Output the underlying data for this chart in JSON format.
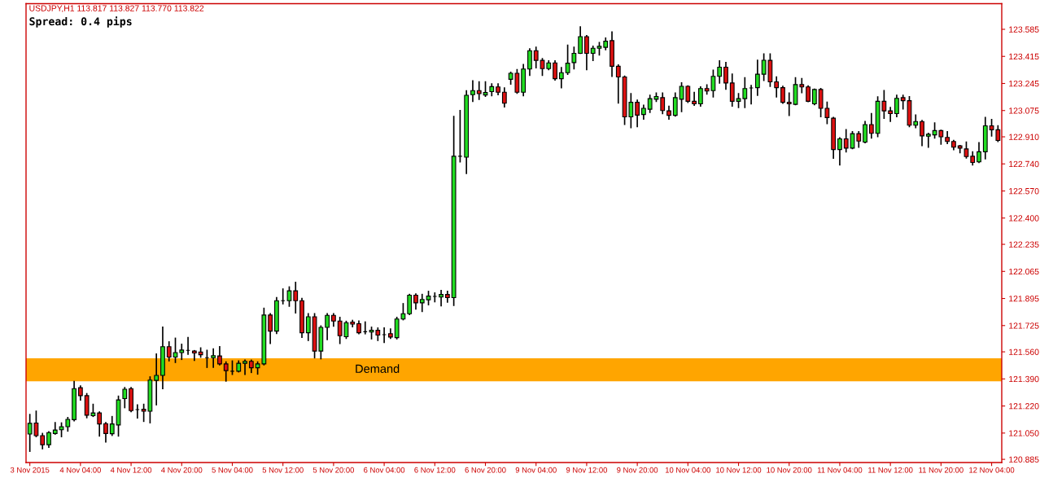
{
  "chart_data": {
    "type": "candlestick",
    "title": "USDJPY,H1 113.817 113.827 113.770 113.822",
    "annotations": [
      "Spread: 0.4 pips"
    ],
    "categories": [
      "3 Nov 2015",
      null,
      null,
      null,
      null,
      null,
      null,
      null,
      "4 Nov 04:00",
      null,
      null,
      null,
      null,
      null,
      null,
      null,
      "4 Nov 12:00",
      null,
      null,
      null,
      null,
      null,
      null,
      null,
      "4 Nov 20:00",
      null,
      null,
      null,
      null,
      null,
      null,
      null,
      "5 Nov 04:00",
      null,
      null,
      null,
      null,
      null,
      null,
      null,
      "5 Nov 12:00",
      null,
      null,
      null,
      null,
      null,
      null,
      null,
      "5 Nov 20:00",
      null,
      null,
      null,
      null,
      null,
      null,
      null,
      "6 Nov 04:00",
      null,
      null,
      null,
      null,
      null,
      null,
      null,
      "6 Nov 12:00",
      null,
      null,
      null,
      null,
      null,
      null,
      null,
      "6 Nov 20:00",
      null,
      null,
      null,
      null,
      null,
      null,
      null,
      "9 Nov 04:00",
      null,
      null,
      null,
      null,
      null,
      null,
      null,
      "9 Nov 12:00",
      null,
      null,
      null,
      null,
      null,
      null,
      null,
      "9 Nov 20:00",
      null,
      null,
      null,
      null,
      null,
      null,
      null,
      "10 Nov 04:00",
      null,
      null,
      null,
      null,
      null,
      null,
      null,
      "10 Nov 12:00",
      null,
      null,
      null,
      null,
      null,
      null,
      null,
      "10 Nov 20:00",
      null,
      null,
      null,
      null,
      null,
      null,
      null,
      "11 Nov 04:00",
      null,
      null,
      null,
      null,
      null,
      null,
      null,
      "11 Nov 12:00",
      null,
      null,
      null,
      null,
      null,
      null,
      null,
      "11 Nov 20:00",
      null,
      null,
      null,
      null,
      null,
      null,
      null,
      "12 Nov 04:00",
      null
    ],
    "ohlc": [
      [
        121.044,
        121.166,
        120.936,
        121.111
      ],
      [
        121.113,
        121.187,
        121.028,
        121.034
      ],
      [
        121.034,
        121.047,
        120.952,
        120.977
      ],
      [
        120.977,
        121.057,
        120.961,
        121.053
      ],
      [
        121.047,
        121.115,
        121.044,
        121.069
      ],
      [
        121.071,
        121.113,
        121.028,
        121.09
      ],
      [
        121.09,
        121.147,
        121.063,
        121.136
      ],
      [
        121.134,
        121.373,
        121.128,
        121.329
      ],
      [
        121.335,
        121.345,
        121.258,
        121.285
      ],
      [
        121.285,
        121.297,
        121.147,
        121.162
      ],
      [
        121.159,
        121.23,
        121.155,
        121.176
      ],
      [
        121.176,
        121.182,
        121.032,
        121.107
      ],
      [
        121.109,
        121.115,
        120.994,
        121.047
      ],
      [
        121.046,
        121.153,
        121.036,
        121.107
      ],
      [
        121.101,
        121.281,
        121.032,
        121.258
      ],
      [
        121.266,
        121.335,
        121.21,
        121.325
      ],
      [
        121.329,
        121.335,
        121.185,
        121.191
      ],
      [
        121.197,
        121.226,
        121.145,
        121.197
      ],
      [
        121.199,
        121.23,
        121.124,
        121.187
      ],
      [
        121.187,
        121.402,
        121.115,
        121.383
      ],
      [
        121.381,
        121.546,
        121.228,
        121.412
      ],
      [
        121.412,
        121.714,
        121.329,
        121.592
      ],
      [
        121.592,
        121.622,
        121.504,
        121.527
      ],
      [
        121.527,
        121.645,
        121.494,
        121.555
      ],
      [
        121.555,
        121.607,
        121.513,
        121.571
      ],
      [
        121.569,
        121.649,
        121.546,
        121.569
      ],
      [
        121.565,
        121.567,
        121.507,
        121.553
      ],
      [
        121.559,
        121.584,
        121.527,
        121.542
      ],
      [
        121.523,
        121.569,
        121.463,
        121.523
      ],
      [
        121.523,
        121.578,
        121.463,
        121.536
      ],
      [
        121.534,
        121.592,
        121.479,
        121.484
      ],
      [
        121.484,
        121.496,
        121.377,
        121.442
      ],
      [
        121.438,
        121.502,
        121.419,
        121.438
      ],
      [
        121.438,
        121.502,
        121.435,
        121.488
      ],
      [
        121.488,
        121.507,
        121.419,
        121.5
      ],
      [
        121.5,
        121.507,
        121.431,
        121.46
      ],
      [
        121.46,
        121.496,
        121.421,
        121.484
      ],
      [
        121.484,
        121.833,
        121.479,
        121.791
      ],
      [
        121.791,
        121.799,
        121.613,
        121.69
      ],
      [
        121.69,
        121.9,
        121.676,
        121.881
      ],
      [
        121.881,
        121.954,
        121.862,
        121.881
      ],
      [
        121.881,
        121.967,
        121.847,
        121.943
      ],
      [
        121.943,
        121.996,
        121.805,
        121.881
      ],
      [
        121.881,
        121.895,
        121.651,
        121.68
      ],
      [
        121.68,
        121.799,
        121.632,
        121.78
      ],
      [
        121.78,
        121.799,
        121.523,
        121.565
      ],
      [
        121.565,
        121.722,
        121.517,
        121.714
      ],
      [
        121.714,
        121.799,
        121.638,
        121.789
      ],
      [
        121.789,
        121.799,
        121.722,
        121.753
      ],
      [
        121.753,
        121.776,
        121.613,
        121.661
      ],
      [
        121.655,
        121.751,
        121.645,
        121.743
      ],
      [
        121.747,
        121.757,
        121.718,
        121.734
      ],
      [
        121.737,
        121.753,
        121.674,
        121.68
      ],
      [
        121.686,
        121.747,
        121.674,
        121.686
      ],
      [
        121.684,
        121.714,
        121.642,
        121.695
      ],
      [
        121.695,
        121.709,
        121.632,
        121.665
      ],
      [
        121.668,
        121.709,
        121.619,
        121.668
      ],
      [
        121.674,
        121.703,
        121.645,
        121.653
      ],
      [
        121.649,
        121.776,
        121.642,
        121.766
      ],
      [
        121.766,
        121.862,
        121.762,
        121.799
      ],
      [
        121.799,
        121.92,
        121.795,
        121.916
      ],
      [
        121.916,
        121.923,
        121.829,
        121.868
      ],
      [
        121.868,
        121.92,
        121.814,
        121.889
      ],
      [
        121.887,
        121.939,
        121.856,
        121.91
      ],
      [
        121.908,
        121.929,
        121.875,
        121.908
      ],
      [
        121.904,
        121.944,
        121.85,
        121.92
      ],
      [
        121.92,
        121.939,
        121.872,
        121.9
      ],
      [
        121.9,
        123.037,
        121.852,
        122.788
      ],
      [
        122.788,
        123.075,
        122.753,
        122.788
      ],
      [
        122.782,
        123.198,
        122.68,
        123.171
      ],
      [
        123.175,
        123.261,
        123.133,
        123.2
      ],
      [
        123.2,
        123.255,
        123.146,
        123.181
      ],
      [
        123.173,
        123.255,
        123.165,
        123.188
      ],
      [
        123.194,
        123.242,
        123.169,
        123.225
      ],
      [
        123.223,
        123.242,
        123.175,
        123.19
      ],
      [
        123.19,
        123.217,
        123.098,
        123.121
      ],
      [
        123.271,
        123.315,
        123.242,
        123.309
      ],
      [
        123.309,
        123.332,
        123.184,
        123.19
      ],
      [
        123.19,
        123.363,
        123.169,
        123.336
      ],
      [
        123.336,
        123.462,
        123.296,
        123.451
      ],
      [
        123.451,
        123.472,
        123.344,
        123.39
      ],
      [
        123.39,
        123.401,
        123.296,
        123.338
      ],
      [
        123.338,
        123.386,
        123.332,
        123.374
      ],
      [
        123.374,
        123.386,
        123.267,
        123.275
      ],
      [
        123.275,
        123.344,
        123.219,
        123.313
      ],
      [
        123.313,
        123.485,
        123.303,
        123.372
      ],
      [
        123.376,
        123.472,
        123.338,
        123.434
      ],
      [
        123.434,
        123.6,
        123.434,
        123.539
      ],
      [
        123.539,
        123.545,
        123.332,
        123.434
      ],
      [
        123.434,
        123.478,
        123.39,
        123.466
      ],
      [
        123.466,
        123.501,
        123.424,
        123.478
      ],
      [
        123.472,
        123.529,
        123.457,
        123.51
      ],
      [
        123.514,
        123.568,
        123.29,
        123.353
      ],
      [
        123.353,
        123.361,
        123.123,
        123.286
      ],
      [
        123.286,
        123.29,
        122.989,
        123.035
      ],
      [
        123.035,
        123.181,
        122.968,
        123.127
      ],
      [
        123.127,
        123.14,
        122.974,
        123.046
      ],
      [
        123.05,
        123.108,
        123.022,
        123.089
      ],
      [
        123.083,
        123.171,
        123.064,
        123.15
      ],
      [
        123.146,
        123.184,
        123.133,
        123.163
      ],
      [
        123.156,
        123.184,
        123.056,
        123.075
      ],
      [
        123.073,
        123.102,
        123.022,
        123.045
      ],
      [
        123.045,
        123.184,
        123.041,
        123.156
      ],
      [
        123.146,
        123.248,
        123.069,
        123.227
      ],
      [
        123.227,
        123.229,
        123.127,
        123.133
      ],
      [
        123.133,
        123.188,
        123.108,
        123.117
      ],
      [
        123.117,
        123.223,
        123.104,
        123.213
      ],
      [
        123.213,
        123.236,
        123.179,
        123.198
      ],
      [
        123.2,
        123.328,
        123.161,
        123.29
      ],
      [
        123.29,
        123.386,
        123.248,
        123.347
      ],
      [
        123.347,
        123.376,
        123.209,
        123.248
      ],
      [
        123.248,
        123.303,
        123.104,
        123.133
      ],
      [
        123.133,
        123.181,
        123.094,
        123.15
      ],
      [
        123.15,
        123.28,
        123.094,
        123.213
      ],
      [
        123.217,
        123.232,
        123.117,
        123.217
      ],
      [
        123.219,
        123.39,
        123.171,
        123.303
      ],
      [
        123.303,
        123.43,
        123.265,
        123.391
      ],
      [
        123.39,
        123.43,
        123.227,
        123.255
      ],
      [
        123.255,
        123.286,
        123.161,
        123.219
      ],
      [
        123.219,
        123.227,
        123.121,
        123.127
      ],
      [
        123.127,
        123.184,
        123.045,
        123.117
      ],
      [
        123.114,
        123.28,
        123.112,
        123.238
      ],
      [
        123.238,
        123.275,
        123.188,
        123.223
      ],
      [
        123.223,
        123.229,
        123.131,
        123.133
      ],
      [
        123.117,
        123.209,
        123.112,
        123.207
      ],
      [
        123.207,
        123.213,
        123.037,
        123.089
      ],
      [
        123.089,
        123.127,
        122.993,
        123.031
      ],
      [
        123.027,
        123.031,
        122.776,
        122.83
      ],
      [
        122.83,
        122.903,
        122.734,
        122.897
      ],
      [
        122.897,
        122.954,
        122.816,
        122.839
      ],
      [
        122.839,
        122.941,
        122.836,
        122.93
      ],
      [
        122.93,
        122.941,
        122.845,
        122.883
      ],
      [
        122.877,
        123.006,
        122.873,
        122.987
      ],
      [
        122.987,
        123.056,
        122.903,
        122.932
      ],
      [
        122.932,
        123.16,
        122.912,
        123.133
      ],
      [
        123.133,
        123.2,
        123.027,
        123.073
      ],
      [
        123.073,
        123.094,
        123.008,
        123.056
      ],
      [
        123.056,
        123.171,
        123.037,
        123.152
      ],
      [
        123.156,
        123.171,
        123.085,
        123.137
      ],
      [
        123.137,
        123.161,
        122.974,
        122.983
      ],
      [
        122.983,
        123.046,
        122.968,
        123.006
      ],
      [
        123.006,
        123.012,
        122.855,
        122.916
      ],
      [
        122.914,
        122.932,
        122.845,
        122.926
      ],
      [
        122.922,
        122.997,
        122.903,
        122.949
      ],
      [
        122.949,
        122.951,
        122.864,
        122.91
      ],
      [
        122.906,
        122.941,
        122.868,
        122.881
      ],
      [
        122.881,
        122.887,
        122.83,
        122.845
      ],
      [
        122.853,
        122.855,
        122.811,
        122.839
      ],
      [
        122.834,
        122.877,
        122.778,
        122.786
      ],
      [
        122.788,
        122.815,
        122.734,
        122.749
      ],
      [
        122.753,
        122.872,
        122.749,
        122.816
      ],
      [
        122.816,
        123.031,
        122.772,
        122.979
      ],
      [
        122.979,
        123.018,
        122.916,
        122.954
      ],
      [
        122.954,
        122.979,
        122.881,
        122.887
      ]
    ],
    "colors": [
      "#22dd22",
      "#dd1111",
      "#dd1111",
      "#22dd22",
      "#22dd22",
      "#22dd22",
      "#22dd22",
      "#22dd22",
      "#dd1111",
      "#dd1111",
      "#22dd22",
      "#dd1111",
      "#dd1111",
      "#22dd22",
      "#22dd22",
      "#22dd22",
      "#dd1111",
      "#000000",
      "#dd1111",
      "#22dd22",
      "#22dd22",
      "#22dd22",
      "#dd1111",
      "#22dd22",
      "#22dd22",
      "#000000",
      "#dd1111",
      "#dd1111",
      "#000000",
      "#22dd22",
      "#dd1111",
      "#dd1111",
      "#000000",
      "#22dd22",
      "#22dd22",
      "#dd1111",
      "#22dd22",
      "#22dd22",
      "#dd1111",
      "#22dd22",
      "#000000",
      "#22dd22",
      "#dd1111",
      "#dd1111",
      "#22dd22",
      "#dd1111",
      "#22dd22",
      "#22dd22",
      "#dd1111",
      "#dd1111",
      "#22dd22",
      "#dd1111",
      "#dd1111",
      "#000000",
      "#22dd22",
      "#dd1111",
      "#000000",
      "#dd1111",
      "#22dd22",
      "#22dd22",
      "#22dd22",
      "#dd1111",
      "#22dd22",
      "#22dd22",
      "#000000",
      "#22dd22",
      "#dd1111",
      "#22dd22",
      "#000000",
      "#22dd22",
      "#22dd22",
      "#dd1111",
      "#22dd22",
      "#22dd22",
      "#dd1111",
      "#dd1111",
      "#22dd22",
      "#dd1111",
      "#22dd22",
      "#22dd22",
      "#dd1111",
      "#dd1111",
      "#22dd22",
      "#dd1111",
      "#22dd22",
      "#22dd22",
      "#22dd22",
      "#22dd22",
      "#dd1111",
      "#22dd22",
      "#22dd22",
      "#22dd22",
      "#dd1111",
      "#dd1111",
      "#dd1111",
      "#22dd22",
      "#dd1111",
      "#22dd22",
      "#22dd22",
      "#22dd22",
      "#dd1111",
      "#dd1111",
      "#22dd22",
      "#22dd22",
      "#dd1111",
      "#dd1111",
      "#22dd22",
      "#dd1111",
      "#22dd22",
      "#22dd22",
      "#dd1111",
      "#dd1111",
      "#22dd22",
      "#22dd22",
      "#000000",
      "#22dd22",
      "#22dd22",
      "#dd1111",
      "#dd1111",
      "#dd1111",
      "#dd1111",
      "#22dd22",
      "#dd1111",
      "#dd1111",
      "#22dd22",
      "#dd1111",
      "#dd1111",
      "#dd1111",
      "#22dd22",
      "#dd1111",
      "#22dd22",
      "#dd1111",
      "#22dd22",
      "#dd1111",
      "#22dd22",
      "#dd1111",
      "#dd1111",
      "#22dd22",
      "#dd1111",
      "#dd1111",
      "#22dd22",
      "#dd1111",
      "#22dd22",
      "#22dd22",
      "#dd1111",
      "#dd1111",
      "#dd1111",
      "#dd1111",
      "#dd1111",
      "#dd1111",
      "#22dd22",
      "#22dd22",
      "#dd1111",
      "#dd1111"
    ],
    "ylim": [
      120.865,
      123.746
    ],
    "yticks": [
      123.585,
      123.415,
      123.245,
      123.075,
      {
        "value": 122.91,
        "label": "122.910"
      },
      {
        "value": 122.74,
        "label": "122.740"
      },
      {
        "value": 122.57,
        "label": "122.570"
      },
      {
        "value": 122.4,
        "label": "122.400"
      },
      122.235,
      122.065,
      121.895,
      121.725,
      {
        "value": 121.56,
        "label": "121.560"
      },
      {
        "value": 121.39,
        "label": "121.390"
      },
      {
        "value": 121.22,
        "label": "121.220"
      },
      {
        "value": 121.05,
        "label": "121.050"
      },
      120.885
    ],
    "bands": [
      {
        "axis": "y",
        "from": 121.375,
        "to": 121.52,
        "label": "Demand",
        "color": "#ffa500"
      }
    ]
  }
}
